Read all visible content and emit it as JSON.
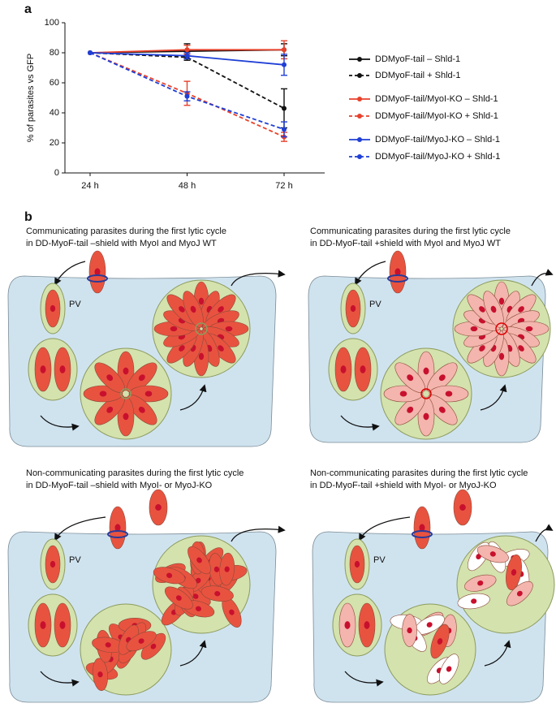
{
  "panel_labels": [
    "a",
    "b"
  ],
  "chart_data": {
    "type": "line",
    "y_label": "% of parasites vs GFP",
    "categories": [
      "24 h",
      "48 h",
      "72 h"
    ],
    "ylim": [
      0,
      100
    ],
    "yticks": [
      0,
      20,
      40,
      60,
      80,
      100
    ],
    "series": [
      {
        "name": "DDMyoF-tail – Shld-1",
        "color": "#111111",
        "dashed": false,
        "values": [
          80,
          81,
          82
        ],
        "errors": [
          null,
          5,
          4
        ]
      },
      {
        "name": "DDMyoF-tail + Shld-1",
        "color": "#111111",
        "dashed": true,
        "values": [
          80,
          77,
          43
        ],
        "errors": [
          null,
          2,
          13
        ]
      },
      {
        "name": "DDMyoF-tail/MyoI-KO – Shld-1",
        "color": "#e8412b",
        "dashed": false,
        "values": [
          80,
          82,
          82
        ],
        "errors": [
          null,
          3,
          6
        ]
      },
      {
        "name": "DDMyoF-tail/MyoI-KO + Shld-1",
        "color": "#e8412b",
        "dashed": true,
        "values": [
          80,
          53,
          24
        ],
        "errors": [
          null,
          8,
          3
        ]
      },
      {
        "name": "DDMyoF-tail/MyoJ-KO – Shld-1",
        "color": "#1f3fd6",
        "dashed": false,
        "values": [
          80,
          78,
          72
        ],
        "errors": [
          null,
          2,
          7
        ]
      },
      {
        "name": "DDMyoF-tail/MyoJ-KO + Shld-1",
        "color": "#1f3fd6",
        "dashed": true,
        "values": [
          80,
          51,
          29
        ],
        "errors": [
          null,
          3,
          5
        ]
      }
    ]
  },
  "diagrams": [
    {
      "caption": [
        "Communicating parasites during the first lytic cycle",
        "in DD-MyoF-tail –shield with MyoI and MyoJ WT"
      ],
      "label": "PV"
    },
    {
      "caption": [
        "Communicating parasites during the first lytic cycle",
        "in DD-MyoF-tail +shield with MyoI and MyoJ WT"
      ],
      "label": "PV"
    },
    {
      "caption": [
        "Non-communicating parasites during the first lytic cycle",
        "in DD-MyoF-tail –shield with MyoI- or MyoJ-KO"
      ],
      "label": "PV"
    },
    {
      "caption": [
        "Non-communicating parasites during the first lytic cycle",
        "in DD-MyoF-tail +shield with MyoI- or MyoJ-KO"
      ],
      "label": "PV"
    }
  ]
}
